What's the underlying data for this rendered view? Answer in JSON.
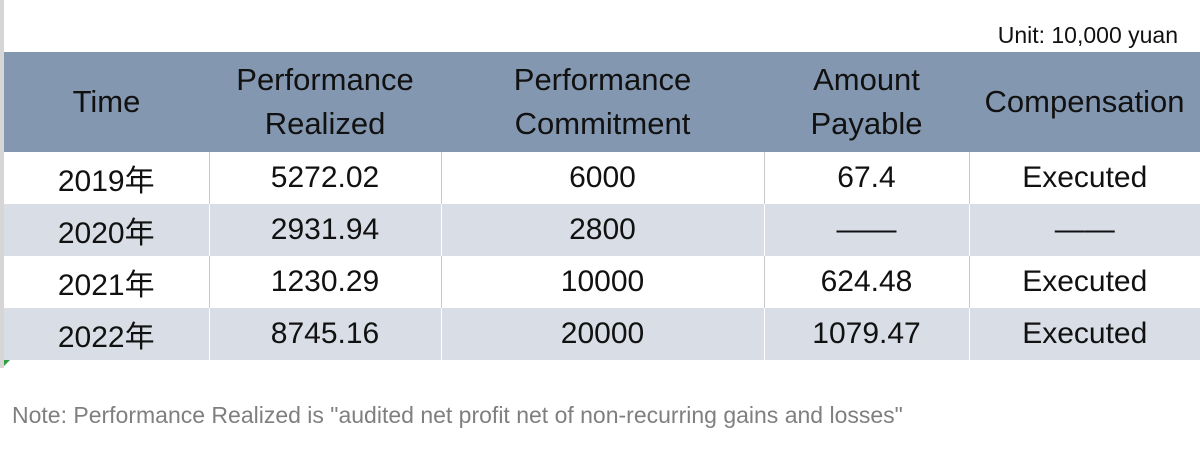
{
  "unit_label": "Unit: 10,000 yuan",
  "table": {
    "headers": [
      "Time",
      "Performance Realized",
      "Performance Commitment",
      "Amount Payable",
      "Compensation"
    ],
    "rows": [
      [
        "2019年",
        "5272.02",
        "6000",
        "67.4",
        "Executed"
      ],
      [
        "2020年",
        "2931.94",
        "2800",
        "——",
        "——"
      ],
      [
        "2021年",
        "1230.29",
        "10000",
        "624.48",
        "Executed"
      ],
      [
        "2022年",
        "8745.16",
        "20000",
        "1079.47",
        "Executed"
      ]
    ]
  },
  "note": "Note: Performance Realized is \"audited net profit net of non-recurring gains and losses\"",
  "colors": {
    "header_bg": "#8497b0",
    "band_bg": "#d8dde6",
    "note_text": "#7f7f7f"
  }
}
